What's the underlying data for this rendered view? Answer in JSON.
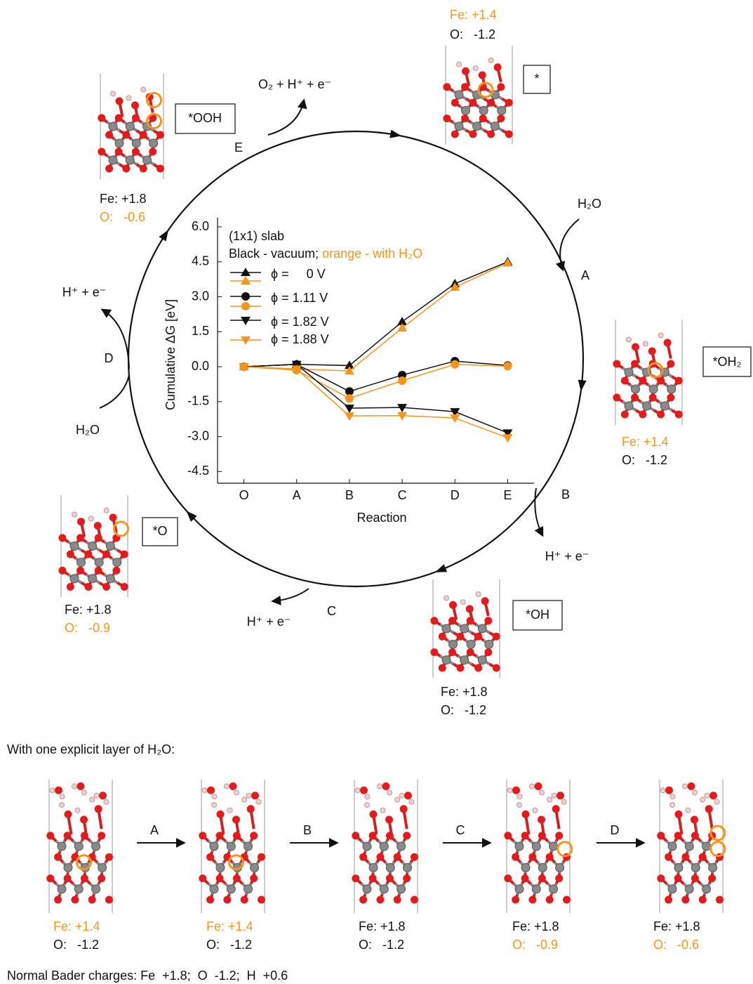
{
  "chart_data": {
    "type": "line",
    "title": "(1x1) slab",
    "subtitle": "Black - vacuum;",
    "subtitle_highlight": "orange - with H₂O",
    "xlabel": "Reaction",
    "ylabel": "Cumulative ΔG [eV]",
    "categories": [
      "O",
      "A",
      "B",
      "C",
      "D",
      "E"
    ],
    "ylim": [
      -5,
      6
    ],
    "yticks": [
      {
        "value": 6,
        "label": "6.0"
      },
      4.5,
      {
        "value": 3,
        "label": "3.0"
      },
      1.5,
      {
        "value": 0,
        "label": "0.0"
      },
      -1.5,
      {
        "value": -3,
        "label": "-3.0"
      },
      -4.5
    ],
    "series": [
      {
        "name": "ϕ =     0 V",
        "color": "#111111",
        "marker": "triangle-up",
        "values": [
          0,
          0.1,
          0.05,
          1.93,
          3.56,
          4.5
        ]
      },
      {
        "color": "#f7941d",
        "marker": "triangle-up",
        "values": [
          0,
          -0.1,
          -0.18,
          1.66,
          3.41,
          4.45
        ]
      },
      {
        "name": "ϕ = 1.11 V",
        "color": "#111111",
        "marker": "circle",
        "values": [
          0,
          0.1,
          -1.06,
          -0.36,
          0.24,
          0.05
        ]
      },
      {
        "color": "#f7941d",
        "marker": "circle",
        "values": [
          0,
          -0.15,
          -1.36,
          -0.6,
          0.1,
          0.02
        ]
      },
      {
        "name": "ϕ = 1.82 V",
        "color": "#111111",
        "marker": "triangle-down",
        "values": [
          0,
          0.1,
          -1.78,
          -1.75,
          -1.93,
          -2.84
        ]
      },
      {
        "name": "ϕ = 1.88 V",
        "color": "#f7941d",
        "marker": "triangle-down",
        "values": [
          0,
          -0.1,
          -2.11,
          -2.1,
          -2.2,
          -3.05
        ]
      }
    ]
  },
  "cycle": {
    "states": [
      {
        "label": "*",
        "fe": "Fe: +1.4",
        "o": "O:   -1.2"
      },
      {
        "label": "*OH₂",
        "fe": "Fe: +1.4",
        "o": "O:   -1.2"
      },
      {
        "label": "*OH",
        "fe": "Fe: +1.8",
        "o": "O:   -1.2"
      },
      {
        "label": "*O",
        "fe": "Fe: +1.8",
        "o": "O:   -0.9"
      },
      {
        "label": "*OOH",
        "fe": "Fe: +1.8",
        "o": "O:   -0.6"
      }
    ],
    "steps": [
      "A",
      "B",
      "C",
      "D",
      "E"
    ],
    "species": [
      "H₂O",
      "H⁺ + e⁻",
      "H⁺ + e⁻",
      "H⁺ + e⁻",
      "H₂O",
      "O₂ + H⁺ + e⁻"
    ]
  },
  "explicit": {
    "title": "With one explicit layer of H₂O:",
    "steps": [
      "A",
      "B",
      "C",
      "D"
    ],
    "panels": [
      {
        "fe": "Fe: +1.4",
        "o": "O:   -1.2"
      },
      {
        "fe": "Fe: +1.4",
        "o": "O:   -1.2"
      },
      {
        "fe": "Fe: +1.8",
        "o": "O:   -1.2"
      },
      {
        "fe": "Fe: +1.8",
        "o": "O:   -0.9"
      },
      {
        "fe": "Fe: +1.8",
        "o": "O:   -0.6"
      }
    ]
  },
  "footer": "Normal Bader charges: Fe  +1.8;  O  -1.2;  H  +0.6"
}
